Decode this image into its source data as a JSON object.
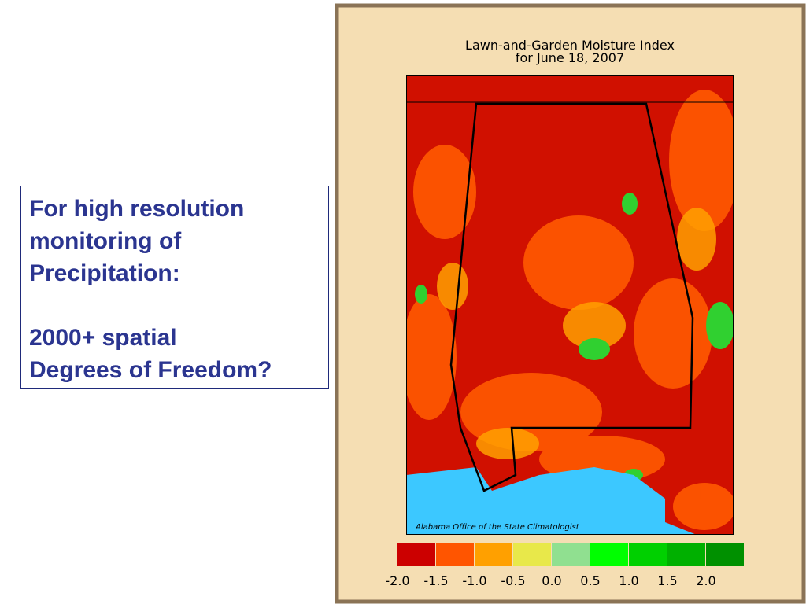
{
  "text_box": {
    "paragraphs": [
      [
        "For high resolution",
        "monitoring of",
        "Precipitation:"
      ],
      [
        "2000+ spatial",
        "Degrees of Freedom?"
      ]
    ]
  },
  "map": {
    "title": [
      "Lawn-and-Garden Moisture Index",
      "for June 18, 2007"
    ],
    "credit": "Alabama Office of the State Climatologist",
    "legend": {
      "colors": [
        "#cc0000",
        "#ff5500",
        "#ffa000",
        "#e8e84a",
        "#90e090",
        "#00ff00",
        "#00d000",
        "#00b000",
        "#009000"
      ],
      "ticks": [
        {
          "value": -2,
          "label": "-2.0"
        },
        {
          "value": -1.5,
          "label": "-1.5"
        },
        {
          "value": -1,
          "label": "-1.0"
        },
        {
          "value": -0.5,
          "label": "-0.5"
        },
        {
          "value": 0,
          "label": "0.0"
        },
        {
          "value": 0.5,
          "label": "0.5"
        },
        {
          "value": 1,
          "label": "1.0"
        },
        {
          "value": 1.5,
          "label": "1.5"
        },
        {
          "value": 2,
          "label": "2.0"
        }
      ]
    }
  }
}
